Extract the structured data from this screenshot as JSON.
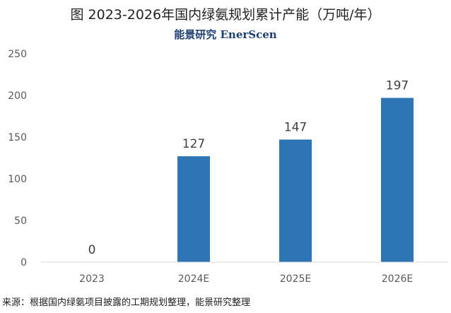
{
  "title": "图  2023-2026年国内绿氨规划累计产能（万吨/年）",
  "brand": "能景研究 EnerScen",
  "source": "来源：根据国内绿氨项目披露的工期规划整理，能景研究整理",
  "colors": {
    "bar": "#2e75b6",
    "axis_text": "#595959",
    "grid": "#d9d9d9"
  },
  "chart_data": {
    "type": "bar",
    "title": "图  2023-2026年国内绿氨规划累计产能（万吨/年）",
    "xlabel": "",
    "ylabel": "",
    "categories": [
      "2023",
      "2024E",
      "2025E",
      "2026E"
    ],
    "values": [
      0,
      127,
      147,
      197
    ],
    "data_labels": [
      "0",
      "127",
      "147",
      "197"
    ],
    "yticks": [
      0,
      50,
      100,
      150,
      200,
      250
    ],
    "ylim": [
      0,
      250
    ],
    "grid": false,
    "legend": "none"
  }
}
